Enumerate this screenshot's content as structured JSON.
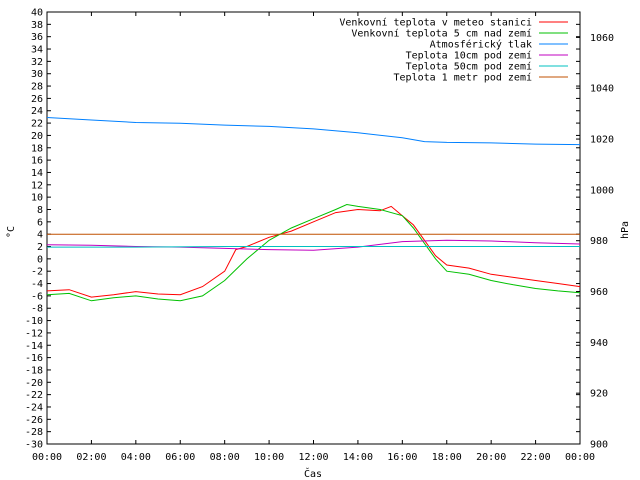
{
  "chart_data": {
    "type": "line",
    "xlabel": "Čas",
    "ylabel_left": "°C",
    "ylabel_right": "hPa",
    "x_ticks": [
      "00:00",
      "02:00",
      "04:00",
      "06:00",
      "08:00",
      "10:00",
      "12:00",
      "14:00",
      "16:00",
      "18:00",
      "20:00",
      "22:00",
      "00:00"
    ],
    "x_range_hours": [
      0,
      24
    ],
    "ylim_left": [
      -30,
      40
    ],
    "y_ticks_left": [
      40,
      38,
      36,
      34,
      32,
      30,
      28,
      26,
      24,
      22,
      20,
      18,
      16,
      14,
      12,
      10,
      8,
      6,
      4,
      2,
      0,
      -2,
      -4,
      -6,
      -8,
      -10,
      -12,
      -14,
      -16,
      -18,
      -20,
      -22,
      -24,
      -26,
      -28,
      -30
    ],
    "ylim_right": [
      900,
      1070
    ],
    "y_ticks_right": [
      1060,
      1040,
      1020,
      1000,
      980,
      960,
      940,
      920,
      900
    ],
    "grid": false,
    "legend_position": "top-right",
    "series": [
      {
        "name": "Venkovní teplota v meteo stanici",
        "color": "#ff0000",
        "axis": "left",
        "points": [
          [
            0,
            -5.2
          ],
          [
            1,
            -5.0
          ],
          [
            2,
            -6.2
          ],
          [
            3,
            -5.8
          ],
          [
            4,
            -5.3
          ],
          [
            5,
            -5.7
          ],
          [
            6,
            -5.8
          ],
          [
            7,
            -4.5
          ],
          [
            8,
            -2.0
          ],
          [
            8.5,
            1.5
          ],
          [
            9,
            2.0
          ],
          [
            10,
            3.5
          ],
          [
            11,
            4.5
          ],
          [
            12,
            6.0
          ],
          [
            13,
            7.5
          ],
          [
            14,
            8.0
          ],
          [
            15,
            7.8
          ],
          [
            15.5,
            8.5
          ],
          [
            16,
            7.0
          ],
          [
            16.5,
            5.5
          ],
          [
            17,
            3.0
          ],
          [
            17.5,
            0.5
          ],
          [
            18,
            -1.0
          ],
          [
            19,
            -1.5
          ],
          [
            20,
            -2.5
          ],
          [
            21,
            -3.0
          ],
          [
            22,
            -3.5
          ],
          [
            23,
            -4.0
          ],
          [
            24,
            -4.5
          ]
        ]
      },
      {
        "name": "Venkovní teplota 5 cm nad zemí",
        "color": "#00c000",
        "axis": "left",
        "points": [
          [
            0,
            -5.8
          ],
          [
            1,
            -5.6
          ],
          [
            2,
            -6.8
          ],
          [
            3,
            -6.3
          ],
          [
            4,
            -6.0
          ],
          [
            5,
            -6.5
          ],
          [
            6,
            -6.8
          ],
          [
            7,
            -6.0
          ],
          [
            8,
            -3.5
          ],
          [
            9,
            0.0
          ],
          [
            10,
            3.0
          ],
          [
            11,
            5.0
          ],
          [
            12,
            6.5
          ],
          [
            13,
            8.0
          ],
          [
            13.5,
            8.8
          ],
          [
            14,
            8.5
          ],
          [
            15,
            8.0
          ],
          [
            16,
            7.0
          ],
          [
            16.5,
            5.0
          ],
          [
            17,
            2.5
          ],
          [
            17.5,
            0.0
          ],
          [
            18,
            -2.0
          ],
          [
            19,
            -2.5
          ],
          [
            20,
            -3.5
          ],
          [
            21,
            -4.2
          ],
          [
            22,
            -4.8
          ],
          [
            23,
            -5.2
          ],
          [
            24,
            -5.5
          ]
        ]
      },
      {
        "name": "Atmosférický tlak",
        "color": "#0080ff",
        "axis": "right",
        "points": [
          [
            0,
            1028.5
          ],
          [
            2,
            1027.5
          ],
          [
            4,
            1026.5
          ],
          [
            6,
            1026.2
          ],
          [
            8,
            1025.5
          ],
          [
            10,
            1025.0
          ],
          [
            12,
            1024.0
          ],
          [
            14,
            1022.5
          ],
          [
            16,
            1020.5
          ],
          [
            17,
            1019.0
          ],
          [
            18,
            1018.7
          ],
          [
            20,
            1018.5
          ],
          [
            22,
            1018.0
          ],
          [
            24,
            1017.8
          ]
        ]
      },
      {
        "name": "Teplota 10cm pod zemí",
        "color": "#c000c0",
        "axis": "left",
        "points": [
          [
            0,
            2.3
          ],
          [
            2,
            2.2
          ],
          [
            4,
            2.0
          ],
          [
            6,
            1.9
          ],
          [
            8,
            1.7
          ],
          [
            10,
            1.5
          ],
          [
            12,
            1.4
          ],
          [
            14,
            1.9
          ],
          [
            16,
            2.8
          ],
          [
            18,
            3.0
          ],
          [
            20,
            2.9
          ],
          [
            22,
            2.6
          ],
          [
            24,
            2.4
          ]
        ]
      },
      {
        "name": "Teplota 50cm pod zemí",
        "color": "#00c0c0",
        "axis": "left",
        "points": [
          [
            0,
            1.9
          ],
          [
            4,
            1.9
          ],
          [
            8,
            2.0
          ],
          [
            12,
            2.0
          ],
          [
            16,
            2.0
          ],
          [
            20,
            2.0
          ],
          [
            24,
            2.0
          ]
        ]
      },
      {
        "name": "Teplota 1 metr pod zemí",
        "color": "#c05000",
        "axis": "left",
        "points": [
          [
            0,
            4.0
          ],
          [
            24,
            4.0
          ]
        ]
      }
    ]
  }
}
